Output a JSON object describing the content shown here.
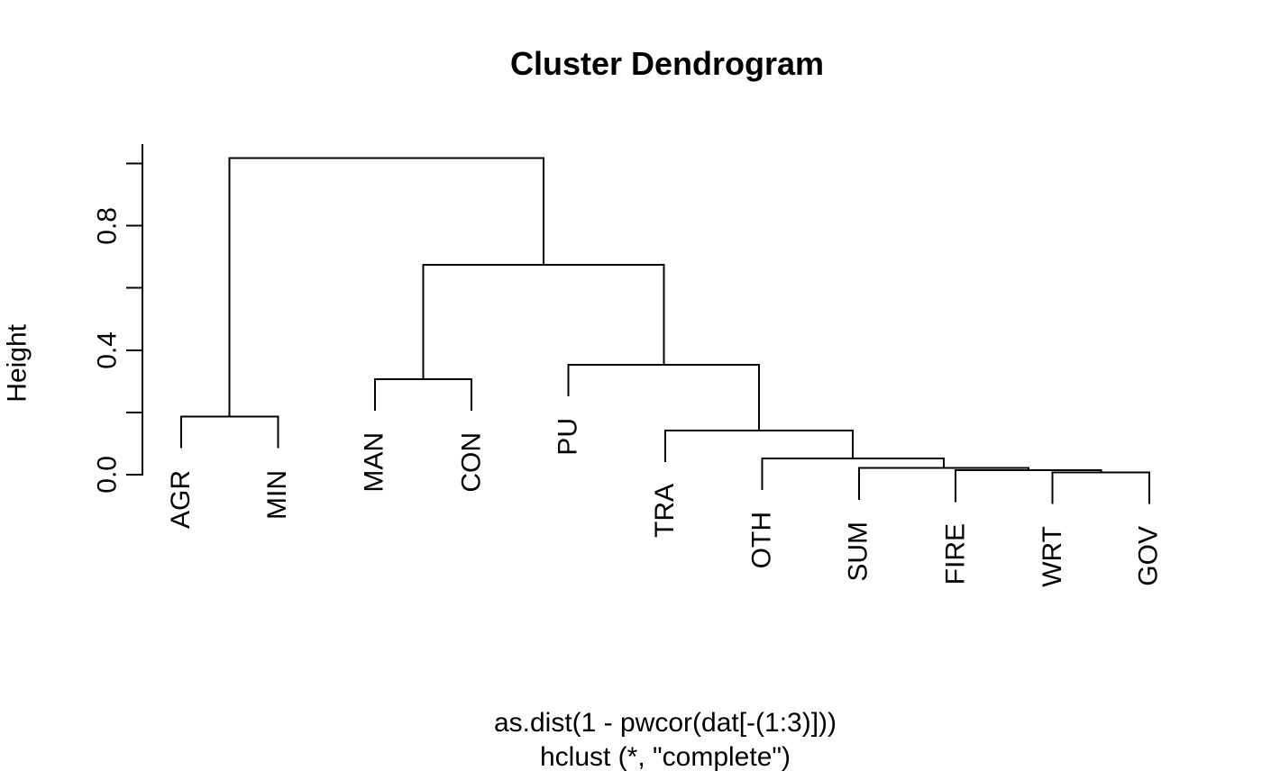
{
  "title": "Cluster Dendrogram",
  "y_axis": {
    "label": "Height",
    "ticks": [
      {
        "value": 0.0,
        "label": "0.0"
      },
      {
        "value": 0.2,
        "label": ""
      },
      {
        "value": 0.4,
        "label": "0.4"
      },
      {
        "value": 0.6,
        "label": ""
      },
      {
        "value": 0.8,
        "label": "0.8"
      },
      {
        "value": 1.0,
        "label": ""
      }
    ]
  },
  "caption": {
    "line1": "as.dist(1 - pwcor(dat[-(1:3)]))",
    "line2": "hclust (*, \"complete\")"
  },
  "colors": {
    "line": "#000000",
    "text": "#000000",
    "background": "#ffffff"
  },
  "chart_data": {
    "type": "dendrogram",
    "leaves": [
      "AGR",
      "MIN",
      "MAN",
      "CON",
      "PU",
      "TRA",
      "OTH",
      "SUM",
      "FIRE",
      "WRT",
      "GOV"
    ],
    "merges": [
      {
        "id": "n1",
        "children": [
          "WRT",
          "GOV"
        ],
        "height": 0.007
      },
      {
        "id": "n2",
        "children": [
          "FIRE",
          "n1"
        ],
        "height": 0.014
      },
      {
        "id": "n3",
        "children": [
          "SUM",
          "n2"
        ],
        "height": 0.021
      },
      {
        "id": "n4",
        "children": [
          "OTH",
          "n3"
        ],
        "height": 0.052
      },
      {
        "id": "n5",
        "children": [
          "TRA",
          "n4"
        ],
        "height": 0.142
      },
      {
        "id": "n6",
        "children": [
          "PU",
          "n5"
        ],
        "height": 0.353
      },
      {
        "id": "n7",
        "children": [
          "MAN",
          "CON"
        ],
        "height": 0.307
      },
      {
        "id": "n8",
        "children": [
          "AGR",
          "MIN"
        ],
        "height": 0.187
      },
      {
        "id": "n9",
        "children": [
          "n7",
          "n6"
        ],
        "height": 0.675
      },
      {
        "id": "n10",
        "children": [
          "n8",
          "n9"
        ],
        "height": 1.017
      }
    ],
    "hang": 0.1,
    "ylim": [
      0,
      1.017
    ],
    "distance": "as.dist(1 - pwcor(dat[-(1:3)]))",
    "method": "complete"
  }
}
